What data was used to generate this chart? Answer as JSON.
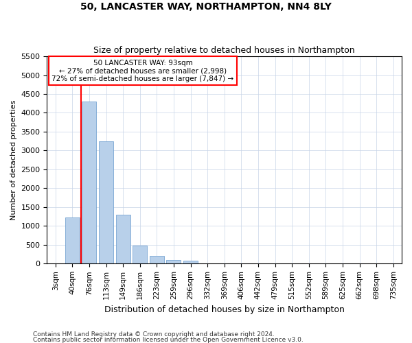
{
  "title": "50, LANCASTER WAY, NORTHAMPTON, NN4 8LY",
  "subtitle": "Size of property relative to detached houses in Northampton",
  "xlabel": "Distribution of detached houses by size in Northampton",
  "ylabel": "Number of detached properties",
  "footnote1": "Contains HM Land Registry data © Crown copyright and database right 2024.",
  "footnote2": "Contains public sector information licensed under the Open Government Licence v3.0.",
  "annotation_title": "50 LANCASTER WAY: 93sqm",
  "annotation_line1": "← 27% of detached houses are smaller (2,998)",
  "annotation_line2": "72% of semi-detached houses are larger (7,847) →",
  "bar_categories": [
    "3sqm",
    "40sqm",
    "76sqm",
    "113sqm",
    "149sqm",
    "186sqm",
    "223sqm",
    "259sqm",
    "296sqm",
    "332sqm",
    "369sqm",
    "406sqm",
    "442sqm",
    "479sqm",
    "515sqm",
    "552sqm",
    "589sqm",
    "625sqm",
    "662sqm",
    "698sqm",
    "735sqm"
  ],
  "bar_values": [
    0,
    1220,
    4300,
    3250,
    1300,
    475,
    200,
    100,
    75,
    0,
    0,
    0,
    0,
    0,
    0,
    0,
    0,
    0,
    0,
    0,
    0
  ],
  "bar_color": "#b8d0ea",
  "bar_edge_color": "#6699cc",
  "red_line_bar_index": 2,
  "ylim_max": 5500,
  "yticks": [
    0,
    500,
    1000,
    1500,
    2000,
    2500,
    3000,
    3500,
    4000,
    4500,
    5000,
    5500
  ],
  "background_color": "#ffffff",
  "grid_color": "#c8d4e8"
}
